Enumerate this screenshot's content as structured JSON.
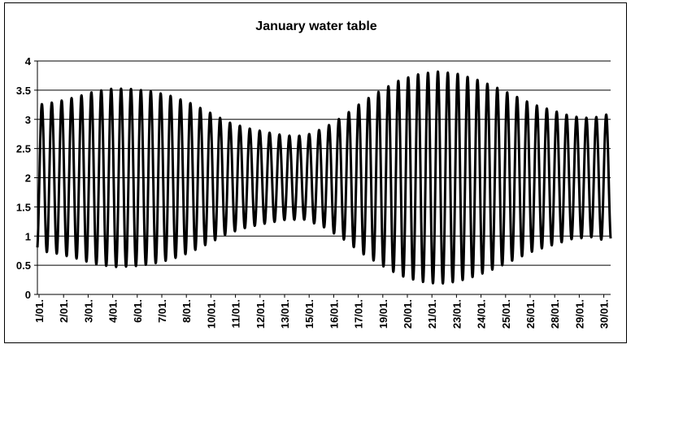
{
  "chart_data": {
    "type": "line",
    "title": "January water table",
    "xlabel": "",
    "ylabel": "",
    "ylim": [
      0,
      4
    ],
    "y_ticks": [
      "0",
      "0.5",
      "1",
      "1.5",
      "2",
      "2.5",
      "3",
      "3.5",
      "4"
    ],
    "x_tick_labels": [
      "1/01.",
      "2/01.",
      "3/01.",
      "4/01.",
      "6/01.",
      "7/01.",
      "8/01.",
      "10/01.",
      "11/01.",
      "12/01.",
      "13/01.",
      "15/01.",
      "16/01.",
      "17/01.",
      "19/01.",
      "20/01.",
      "21/01.",
      "23/01.",
      "24/01.",
      "25/01.",
      "26/01.",
      "28/01.",
      "29/01.",
      "30/01."
    ],
    "grid": true,
    "legend": "none",
    "line_color": "#000000",
    "series": [
      {
        "cycles_per_day": 1.93,
        "mean_level": 2.0,
        "x_days": [
          1,
          2,
          3,
          4,
          5,
          6,
          7,
          8,
          9,
          10,
          11,
          12,
          13,
          14,
          15,
          16,
          17,
          18,
          19,
          20,
          21,
          22,
          23,
          24,
          25,
          26,
          27,
          28,
          29,
          30,
          31
        ],
        "amplitude": [
          1.25,
          1.3,
          1.38,
          1.48,
          1.53,
          1.52,
          1.48,
          1.4,
          1.28,
          1.12,
          0.95,
          0.85,
          0.78,
          0.72,
          0.72,
          0.85,
          1.05,
          1.3,
          1.5,
          1.68,
          1.78,
          1.82,
          1.78,
          1.68,
          1.55,
          1.4,
          1.25,
          1.15,
          1.05,
          1.02,
          1.1
        ]
      }
    ]
  }
}
